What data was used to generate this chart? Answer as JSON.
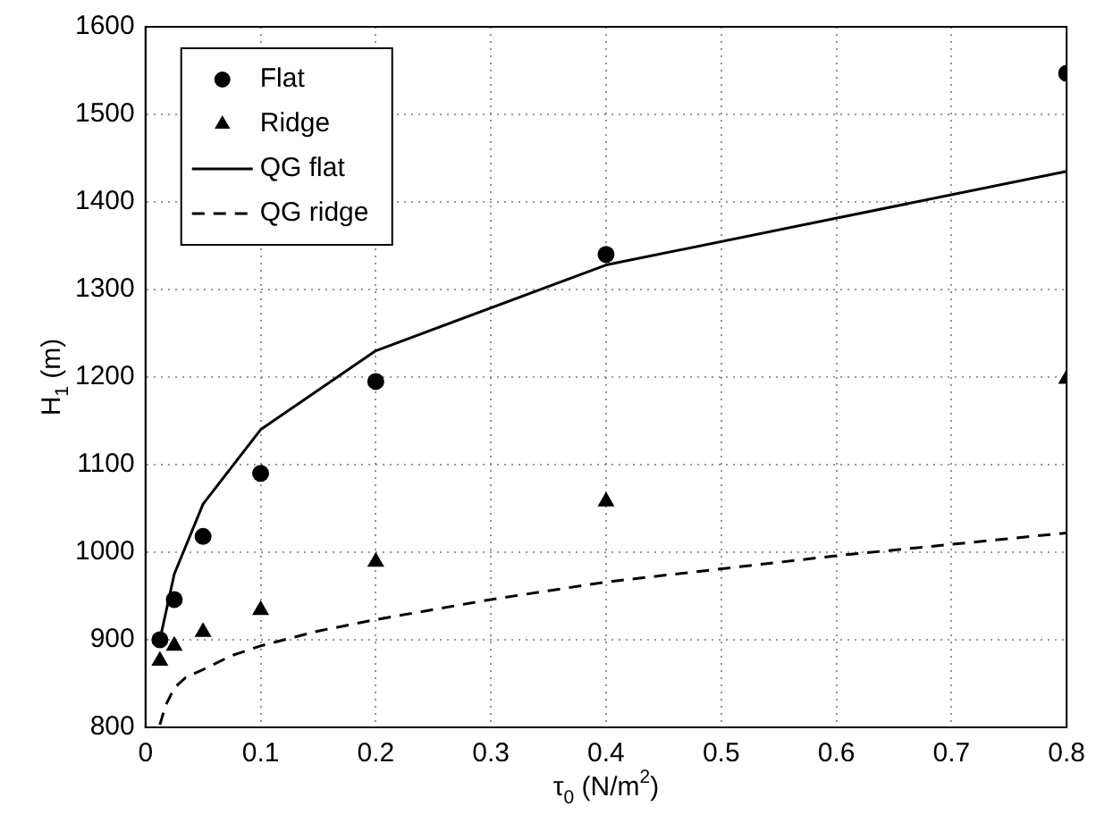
{
  "chart_data": {
    "type": "scatter",
    "xlabel": "τ$_{0}$ (N/m$^{2}$)",
    "ylabel": "H$_{1}$ (m)",
    "xlim": [
      0,
      0.8
    ],
    "xticks": [
      0,
      0.1,
      0.2,
      0.3,
      0.4,
      0.5,
      0.6,
      0.7,
      0.8
    ],
    "ylim": [
      800,
      1600
    ],
    "yticks": [
      800,
      900,
      1000,
      1100,
      1200,
      1300,
      1400,
      1500,
      1600
    ],
    "grid": true,
    "legend": "top left",
    "series": [
      {
        "name": "Flat",
        "type": "scatter",
        "marker": "circle",
        "color": "#000000",
        "x": [
          0.0125,
          0.025,
          0.05,
          0.1,
          0.2,
          0.4,
          0.8
        ],
        "values": [
          900,
          946,
          1018,
          1090,
          1195,
          1340,
          1547
        ]
      },
      {
        "name": "Ridge",
        "type": "scatter",
        "marker": "triangle",
        "color": "#000000",
        "x": [
          0.0125,
          0.025,
          0.05,
          0.1,
          0.2,
          0.4,
          0.8
        ],
        "values": [
          876,
          893,
          909,
          934,
          989,
          1058,
          1198
        ]
      },
      {
        "name": "QG flat",
        "type": "line",
        "marker": "none",
        "line_style": "solid",
        "color": "#000000",
        "x": [
          0.0125,
          0.025,
          0.05,
          0.1,
          0.2,
          0.4,
          0.8
        ],
        "values": [
          900,
          975,
          1055,
          1140,
          1230,
          1328,
          1435
        ]
      },
      {
        "name": "QG ridge",
        "type": "line",
        "marker": "none",
        "line_style": "dashed",
        "color": "#000000",
        "x": [
          0.0125,
          0.0175,
          0.025,
          0.035,
          0.05,
          0.075,
          0.1,
          0.15,
          0.2,
          0.3,
          0.4,
          0.6,
          0.8
        ],
        "values": [
          803,
          825,
          845,
          857,
          866,
          882,
          893,
          910,
          923,
          946,
          966,
          996,
          1022
        ]
      }
    ]
  }
}
